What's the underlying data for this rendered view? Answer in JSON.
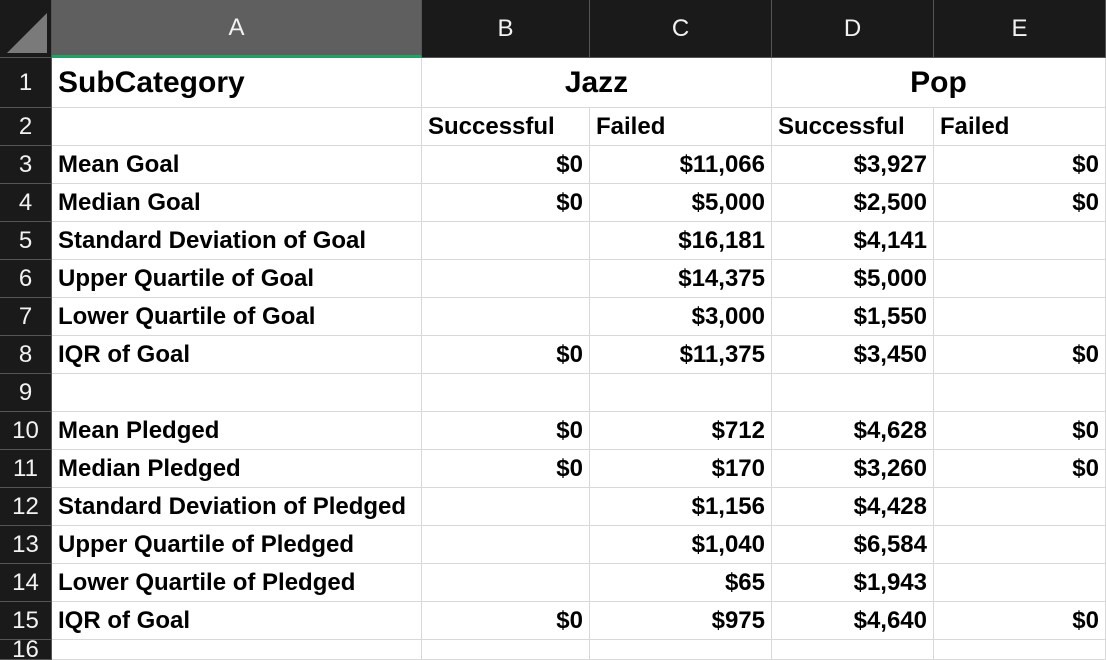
{
  "columns": [
    "A",
    "B",
    "C",
    "D",
    "E"
  ],
  "title": "SubCategory",
  "groups": [
    "Jazz",
    "Pop"
  ],
  "subheaders": [
    "Successful",
    "Failed",
    "Successful",
    "Failed"
  ],
  "rows": [
    {
      "n": "3",
      "label": "Mean Goal",
      "b": "$0",
      "c": "$11,066",
      "d": "$3,927",
      "e": "$0"
    },
    {
      "n": "4",
      "label": "Median Goal",
      "b": "$0",
      "c": "$5,000",
      "d": "$2,500",
      "e": "$0"
    },
    {
      "n": "5",
      "label": "Standard Deviation of Goal",
      "b": "",
      "c": "$16,181",
      "d": "$4,141",
      "e": ""
    },
    {
      "n": "6",
      "label": "Upper Quartile of Goal",
      "b": "",
      "c": "$14,375",
      "d": "$5,000",
      "e": ""
    },
    {
      "n": "7",
      "label": "Lower Quartile of Goal",
      "b": "",
      "c": "$3,000",
      "d": "$1,550",
      "e": ""
    },
    {
      "n": "8",
      "label": "IQR of Goal",
      "b": "$0",
      "c": "$11,375",
      "d": "$3,450",
      "e": "$0"
    },
    {
      "n": "9",
      "label": "",
      "b": "",
      "c": "",
      "d": "",
      "e": ""
    },
    {
      "n": "10",
      "label": "Mean Pledged",
      "b": "$0",
      "c": "$712",
      "d": "$4,628",
      "e": "$0"
    },
    {
      "n": "11",
      "label": "Median Pledged",
      "b": "$0",
      "c": "$170",
      "d": "$3,260",
      "e": "$0"
    },
    {
      "n": "12",
      "label": "Standard Deviation of Pledged",
      "b": "",
      "c": "$1,156",
      "d": "$4,428",
      "e": ""
    },
    {
      "n": "13",
      "label": "Upper Quartile of Pledged",
      "b": "",
      "c": "$1,040",
      "d": "$6,584",
      "e": ""
    },
    {
      "n": "14",
      "label": "Lower Quartile of Pledged",
      "b": "",
      "c": "$65",
      "d": "$1,943",
      "e": ""
    },
    {
      "n": "15",
      "label": "IQR of Goal",
      "b": "$0",
      "c": "$975",
      "d": "$4,640",
      "e": "$0"
    }
  ],
  "row_numbers": [
    "1",
    "2",
    "16"
  ],
  "colors": {
    "header_bg": "#1a1a1a",
    "selected_col_bg": "#5f5f5f",
    "selected_accent": "#21a366",
    "gridline": "#d9d9d9"
  }
}
